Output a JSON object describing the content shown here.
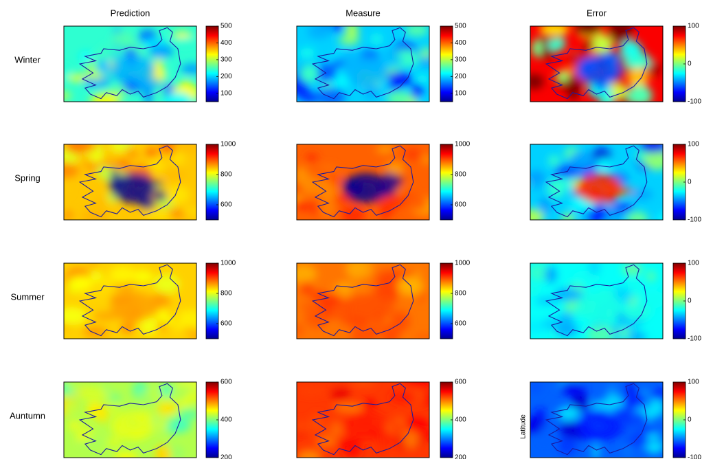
{
  "columns": [
    "Prediction",
    "Measure",
    "Error"
  ],
  "rows": [
    "Winter",
    "Spring",
    "Summer",
    "Auntumn"
  ],
  "y_label": "Latitude",
  "colorbars": [
    [
      {
        "lim": [
          50,
          500
        ],
        "ticks": [
          100,
          200,
          300,
          400,
          500
        ]
      },
      {
        "lim": [
          50,
          500
        ],
        "ticks": [
          100,
          200,
          300,
          400,
          500
        ]
      },
      {
        "lim": [
          -100,
          100
        ],
        "ticks": [
          -100,
          0,
          100
        ]
      }
    ],
    [
      {
        "lim": [
          500,
          1000
        ],
        "ticks": [
          600,
          800,
          1000
        ]
      },
      {
        "lim": [
          500,
          1000
        ],
        "ticks": [
          600,
          800,
          1000
        ]
      },
      {
        "lim": [
          -100,
          100
        ],
        "ticks": [
          -100,
          0,
          100
        ]
      }
    ],
    [
      {
        "lim": [
          500,
          1000
        ],
        "ticks": [
          600,
          800,
          1000
        ]
      },
      {
        "lim": [
          500,
          1000
        ],
        "ticks": [
          600,
          800,
          1000
        ]
      },
      {
        "lim": [
          -100,
          100
        ],
        "ticks": [
          -100,
          0,
          100
        ]
      }
    ],
    [
      {
        "lim": [
          200,
          600
        ],
        "ticks": [
          200,
          400,
          600
        ]
      },
      {
        "lim": [
          200,
          600
        ],
        "ticks": [
          200,
          400,
          600
        ]
      },
      {
        "lim": [
          -100,
          100
        ],
        "ticks": [
          -100,
          0,
          100
        ]
      }
    ]
  ]
}
